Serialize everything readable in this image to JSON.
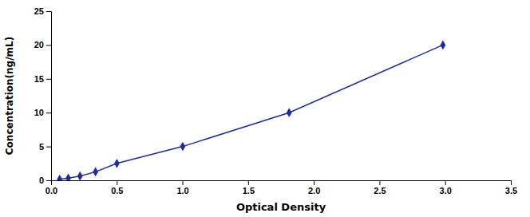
{
  "chart_data": {
    "type": "line",
    "x": [
      0.065,
      0.131,
      0.22,
      0.338,
      0.501,
      1.002,
      1.812,
      2.983
    ],
    "values": [
      0.156,
      0.312,
      0.625,
      1.25,
      2.5,
      5.0,
      10.0,
      20.0
    ],
    "color": "#1C2EA0",
    "marker": "diamond",
    "line_style": "solid",
    "xlabel": "Optical Density",
    "ylabel": "Concentration(ng/mL)",
    "xlim": [
      0,
      3.5
    ],
    "ylim": [
      0,
      25
    ],
    "xticks": [
      {
        "value": 0,
        "label": "0.0"
      },
      0.5,
      {
        "value": 1.0,
        "label": "1.0"
      },
      1.5,
      {
        "value": 2.0,
        "label": "2.0"
      },
      2.5,
      {
        "value": 3.0,
        "label": "3.0"
      },
      3.5
    ],
    "yticks": [
      0,
      5,
      10,
      15,
      20,
      25
    ],
    "grid": false
  }
}
